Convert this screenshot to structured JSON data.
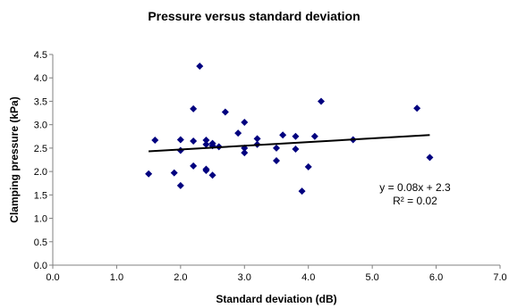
{
  "chart_data": {
    "type": "scatter",
    "title": "Pressure versus standard deviation",
    "xlabel": "Standard deviation (dB)",
    "ylabel": "Clamping pressure (kPa)",
    "xlim": [
      0,
      7
    ],
    "ylim": [
      0,
      4.5
    ],
    "x_ticks": [
      "0.0",
      "1.0",
      "2.0",
      "3.0",
      "4.0",
      "5.0",
      "6.0",
      "7.0"
    ],
    "y_ticks": [
      "0.0",
      "0.5",
      "1.0",
      "1.5",
      "2.0",
      "2.5",
      "3.0",
      "3.5",
      "4.0",
      "4.5"
    ],
    "grid": false,
    "legend": "none",
    "marker": "diamond",
    "marker_color": "#00007f",
    "trendline_color": "#000000",
    "points": [
      {
        "x": 1.5,
        "y": 1.95
      },
      {
        "x": 1.6,
        "y": 2.67
      },
      {
        "x": 1.9,
        "y": 1.97
      },
      {
        "x": 2.0,
        "y": 2.68
      },
      {
        "x": 2.0,
        "y": 2.45
      },
      {
        "x": 2.0,
        "y": 1.7
      },
      {
        "x": 2.2,
        "y": 3.34
      },
      {
        "x": 2.2,
        "y": 2.65
      },
      {
        "x": 2.2,
        "y": 2.12
      },
      {
        "x": 2.3,
        "y": 4.25
      },
      {
        "x": 2.4,
        "y": 2.67
      },
      {
        "x": 2.4,
        "y": 2.58
      },
      {
        "x": 2.4,
        "y": 2.05
      },
      {
        "x": 2.4,
        "y": 2.02
      },
      {
        "x": 2.5,
        "y": 2.6
      },
      {
        "x": 2.5,
        "y": 2.55
      },
      {
        "x": 2.5,
        "y": 1.92
      },
      {
        "x": 2.6,
        "y": 2.53
      },
      {
        "x": 2.7,
        "y": 3.27
      },
      {
        "x": 2.9,
        "y": 2.82
      },
      {
        "x": 3.0,
        "y": 3.05
      },
      {
        "x": 3.0,
        "y": 2.5
      },
      {
        "x": 3.0,
        "y": 2.4
      },
      {
        "x": 3.2,
        "y": 2.7
      },
      {
        "x": 3.2,
        "y": 2.58
      },
      {
        "x": 3.5,
        "y": 2.5
      },
      {
        "x": 3.5,
        "y": 2.23
      },
      {
        "x": 3.6,
        "y": 2.78
      },
      {
        "x": 3.8,
        "y": 2.75
      },
      {
        "x": 3.8,
        "y": 2.48
      },
      {
        "x": 3.9,
        "y": 1.58
      },
      {
        "x": 4.0,
        "y": 2.1
      },
      {
        "x": 4.1,
        "y": 2.75
      },
      {
        "x": 4.2,
        "y": 3.5
      },
      {
        "x": 4.7,
        "y": 2.68
      },
      {
        "x": 5.7,
        "y": 3.35
      },
      {
        "x": 5.9,
        "y": 2.3
      }
    ],
    "trendline": {
      "x": [
        1.5,
        5.9
      ],
      "y": [
        2.43,
        2.78
      ]
    },
    "equation": "y = 0.08x + 2.3",
    "r_squared": "R² = 0.02"
  }
}
